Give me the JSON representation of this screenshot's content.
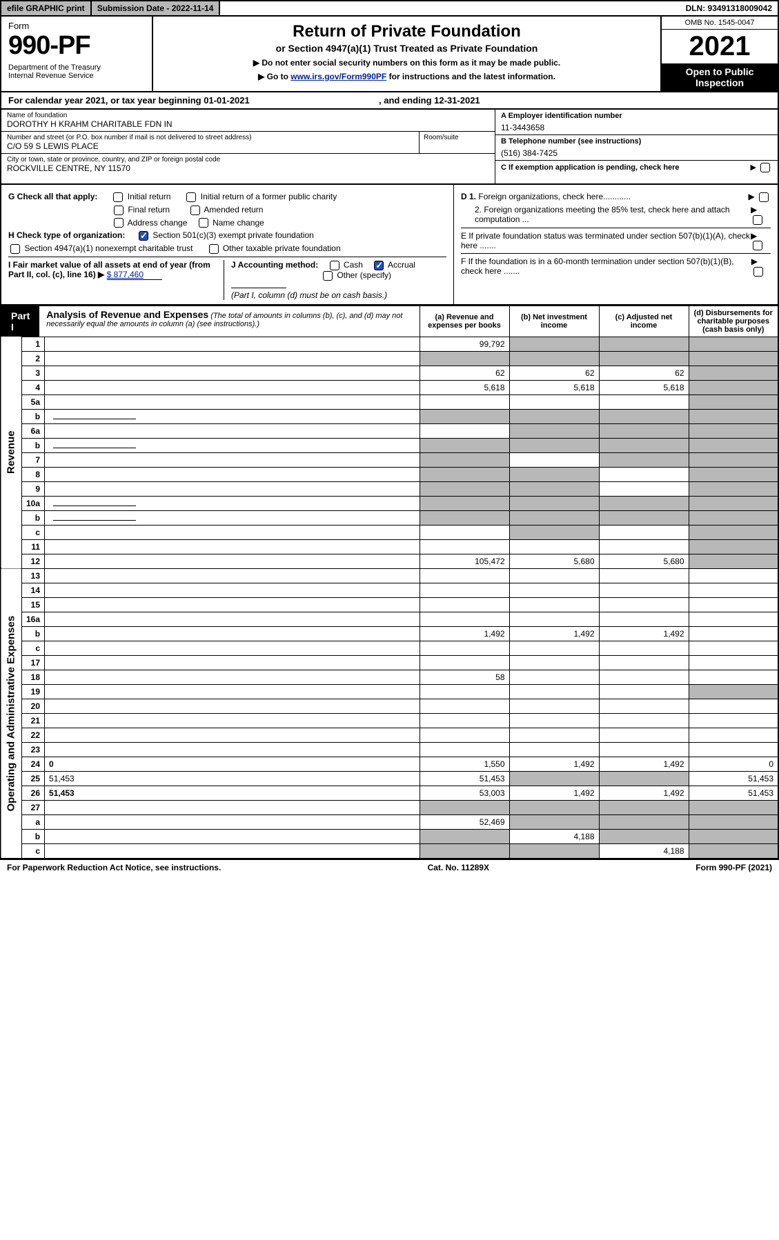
{
  "topbar": {
    "efile": "efile GRAPHIC print",
    "submission": "Submission Date - 2022-11-14",
    "dln": "DLN: 93491318009042"
  },
  "header": {
    "form_label": "Form",
    "form_number": "990-PF",
    "dept": "Department of the Treasury\nInternal Revenue Service",
    "title": "Return of Private Foundation",
    "subtitle": "or Section 4947(a)(1) Trust Treated as Private Foundation",
    "instr1": "▶ Do not enter social security numbers on this form as it may be made public.",
    "instr2_pre": "▶ Go to ",
    "instr2_link": "www.irs.gov/Form990PF",
    "instr2_post": " for instructions and the latest information.",
    "omb": "OMB No. 1545-0047",
    "year": "2021",
    "open_public": "Open to Public Inspection"
  },
  "cal_year": {
    "prefix": "For calendar year 2021, or tax year beginning ",
    "begin": "01-01-2021",
    "mid": " , and ending ",
    "end": "12-31-2021"
  },
  "foundation": {
    "name_lbl": "Name of foundation",
    "name": "DOROTHY H KRAHM CHARITABLE FDN IN",
    "addr_lbl": "Number and street (or P.O. box number if mail is not delivered to street address)",
    "addr": "C/O 59 S LEWIS PLACE",
    "room_lbl": "Room/suite",
    "city_lbl": "City or town, state or province, country, and ZIP or foreign postal code",
    "city": "ROCKVILLE CENTRE, NY  11570",
    "ein_lbl": "A Employer identification number",
    "ein": "11-3443658",
    "phone_lbl": "B Telephone number (see instructions)",
    "phone": "(516) 384-7425",
    "c_lbl": "C If exemption application is pending, check here",
    "d1": "D 1. Foreign organizations, check here............",
    "d2": "2. Foreign organizations meeting the 85% test, check here and attach computation ...",
    "e": "E  If private foundation status was terminated under section 507(b)(1)(A), check here .......",
    "f": "F  If the foundation is in a 60-month termination under section 507(b)(1)(B), check here .......",
    "g_lbl": "G Check all that apply:",
    "g_opts": [
      "Initial return",
      "Initial return of a former public charity",
      "Final return",
      "Amended return",
      "Address change",
      "Name change"
    ],
    "h_lbl": "H Check type of organization:",
    "h1": "Section 501(c)(3) exempt private foundation",
    "h2": "Section 4947(a)(1) nonexempt charitable trust",
    "h3": "Other taxable private foundation",
    "i_lbl": "I Fair market value of all assets at end of year (from Part II, col. (c), line 16) ▶",
    "i_val": "$  877,460",
    "j_lbl": "J Accounting method:",
    "j_cash": "Cash",
    "j_accrual": "Accrual",
    "j_other": "Other (specify)",
    "j_note": "(Part I, column (d) must be on cash basis.)"
  },
  "part1": {
    "label": "Part I",
    "title": "Analysis of Revenue and Expenses",
    "note": " (The total of amounts in columns (b), (c), and (d) may not necessarily equal the amounts in column (a) (see instructions).)",
    "col_a": "(a)   Revenue and expenses per books",
    "col_b": "(b)   Net investment income",
    "col_c": "(c)   Adjusted net income",
    "col_d": "(d)   Disbursements for charitable purposes (cash basis only)"
  },
  "sidelabels": {
    "revenue": "Revenue",
    "expenses": "Operating and Administrative Expenses"
  },
  "rows": [
    {
      "n": "1",
      "d": "",
      "a": "99,792",
      "b": "",
      "c": "",
      "shade_b": true,
      "shade_c": true,
      "shade_d": true
    },
    {
      "n": "2",
      "d": "",
      "a": "",
      "b": "",
      "c": "",
      "shade_a": true,
      "shade_b": true,
      "shade_c": true,
      "shade_d": true
    },
    {
      "n": "3",
      "d": "",
      "a": "62",
      "b": "62",
      "c": "62",
      "shade_d": true
    },
    {
      "n": "4",
      "d": "",
      "a": "5,618",
      "b": "5,618",
      "c": "5,618",
      "shade_d": true
    },
    {
      "n": "5a",
      "d": "",
      "a": "",
      "b": "",
      "c": "",
      "shade_d": true
    },
    {
      "n": "b",
      "d": "",
      "a": "",
      "b": "",
      "c": "",
      "nested": true,
      "shade_a": true,
      "shade_b": true,
      "shade_c": true,
      "shade_d": true
    },
    {
      "n": "6a",
      "d": "",
      "a": "",
      "b": "",
      "c": "",
      "shade_b": true,
      "shade_c": true,
      "shade_d": true
    },
    {
      "n": "b",
      "d": "",
      "a": "",
      "b": "",
      "c": "",
      "nested": true,
      "shade_a": true,
      "shade_b": true,
      "shade_c": true,
      "shade_d": true
    },
    {
      "n": "7",
      "d": "",
      "a": "",
      "b": "",
      "c": "",
      "shade_a": true,
      "shade_c": true,
      "shade_d": true
    },
    {
      "n": "8",
      "d": "",
      "a": "",
      "b": "",
      "c": "",
      "shade_a": true,
      "shade_b": true,
      "shade_d": true
    },
    {
      "n": "9",
      "d": "",
      "a": "",
      "b": "",
      "c": "",
      "shade_a": true,
      "shade_b": true,
      "shade_d": true
    },
    {
      "n": "10a",
      "d": "",
      "a": "",
      "b": "",
      "c": "",
      "nested": true,
      "shade_a": true,
      "shade_b": true,
      "shade_c": true,
      "shade_d": true
    },
    {
      "n": "b",
      "d": "",
      "a": "",
      "b": "",
      "c": "",
      "nested": true,
      "shade_a": true,
      "shade_b": true,
      "shade_c": true,
      "shade_d": true
    },
    {
      "n": "c",
      "d": "",
      "a": "",
      "b": "",
      "c": "",
      "shade_b": true,
      "shade_d": true
    },
    {
      "n": "11",
      "d": "",
      "a": "",
      "b": "",
      "c": "",
      "shade_d": true
    },
    {
      "n": "12",
      "d": "",
      "a": "105,472",
      "b": "5,680",
      "c": "5,680",
      "bold": true,
      "shade_d": true
    },
    {
      "n": "13",
      "d": "",
      "a": "",
      "b": "",
      "c": ""
    },
    {
      "n": "14",
      "d": "",
      "a": "",
      "b": "",
      "c": ""
    },
    {
      "n": "15",
      "d": "",
      "a": "",
      "b": "",
      "c": ""
    },
    {
      "n": "16a",
      "d": "",
      "a": "",
      "b": "",
      "c": ""
    },
    {
      "n": "b",
      "d": "",
      "a": "1,492",
      "b": "1,492",
      "c": "1,492"
    },
    {
      "n": "c",
      "d": "",
      "a": "",
      "b": "",
      "c": ""
    },
    {
      "n": "17",
      "d": "",
      "a": "",
      "b": "",
      "c": ""
    },
    {
      "n": "18",
      "d": "",
      "a": "58",
      "b": "",
      "c": ""
    },
    {
      "n": "19",
      "d": "",
      "a": "",
      "b": "",
      "c": "",
      "shade_d": true
    },
    {
      "n": "20",
      "d": "",
      "a": "",
      "b": "",
      "c": ""
    },
    {
      "n": "21",
      "d": "",
      "a": "",
      "b": "",
      "c": ""
    },
    {
      "n": "22",
      "d": "",
      "a": "",
      "b": "",
      "c": ""
    },
    {
      "n": "23",
      "d": "",
      "a": "",
      "b": "",
      "c": ""
    },
    {
      "n": "24",
      "d": "0",
      "a": "1,550",
      "b": "1,492",
      "c": "1,492",
      "bold": true
    },
    {
      "n": "25",
      "d": "51,453",
      "a": "51,453",
      "b": "",
      "c": "",
      "shade_b": true,
      "shade_c": true
    },
    {
      "n": "26",
      "d": "51,453",
      "a": "53,003",
      "b": "1,492",
      "c": "1,492",
      "bold": true
    },
    {
      "n": "27",
      "d": "",
      "a": "",
      "b": "",
      "c": "",
      "shade_a": true,
      "shade_b": true,
      "shade_c": true,
      "shade_d": true
    },
    {
      "n": "a",
      "d": "",
      "a": "52,469",
      "b": "",
      "c": "",
      "bold": true,
      "shade_b": true,
      "shade_c": true,
      "shade_d": true
    },
    {
      "n": "b",
      "d": "",
      "a": "",
      "b": "4,188",
      "c": "",
      "bold": true,
      "shade_a": true,
      "shade_c": true,
      "shade_d": true
    },
    {
      "n": "c",
      "d": "",
      "a": "",
      "b": "",
      "c": "4,188",
      "bold": true,
      "shade_a": true,
      "shade_b": true,
      "shade_d": true
    }
  ],
  "footer": {
    "left": "For Paperwork Reduction Act Notice, see instructions.",
    "mid": "Cat. No. 11289X",
    "right": "Form 990-PF (2021)"
  }
}
